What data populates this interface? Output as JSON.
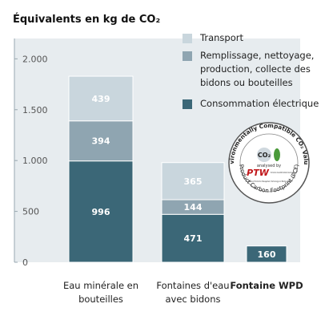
{
  "chart_data": {
    "type": "stacked_bar",
    "title": "Équivalents en kg de CO₂",
    "categories": [
      "Eau minérale en bouteilles",
      "Fontaines d'eau avec bidons",
      "Fontaine WPD"
    ],
    "series": [
      {
        "name": "Consommation électrique",
        "color": "#3b6777",
        "values": [
          996,
          471,
          160
        ]
      },
      {
        "name": "Remplissage, nettoyage, production, collecte des bidons ou bouteilles",
        "color": "#8fa5b1",
        "values": [
          394,
          144,
          null
        ]
      },
      {
        "name": "Transport",
        "color": "#c9d6dd",
        "values": [
          439,
          365,
          null
        ]
      }
    ],
    "ylim": [
      0,
      2200
    ],
    "yticks": [
      0,
      500,
      {
        "value": 1000,
        "label": "1.000"
      },
      {
        "value": 1500,
        "label": "1.500"
      },
      {
        "value": 2000,
        "label": "2.000"
      }
    ],
    "badge": {
      "top": "Environmentally Compatible CO₂ Values",
      "center": "CO₂",
      "analysed": "analysed by",
      "logo": "PTW",
      "university": "Technische Universität Darmstadt, Germany",
      "institute": "Institute of Production Management, Technology and Machine Tools",
      "bottom": "Product Carbon Footprint (PCF)"
    }
  }
}
